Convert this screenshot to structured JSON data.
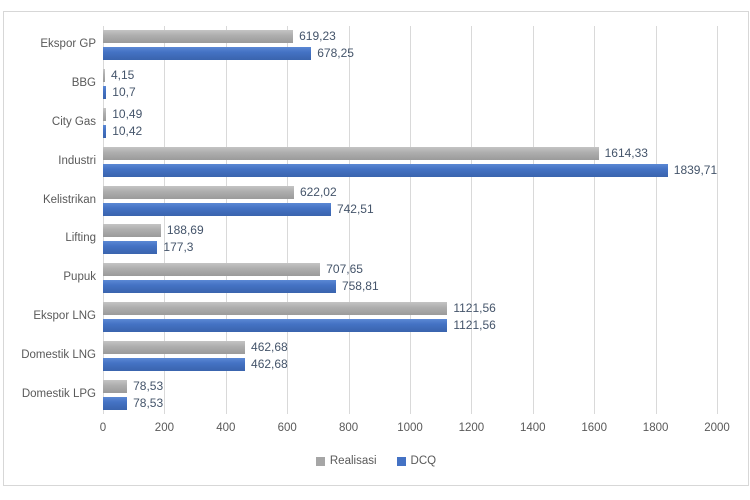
{
  "chart_data": {
    "type": "bar",
    "orientation": "horizontal",
    "title": "",
    "xlabel": "",
    "ylabel": "",
    "grid": "vertical",
    "legend_position": "bottom",
    "categories": [
      "Ekspor GP",
      "BBG",
      "City Gas",
      "Industri",
      "Kelistrikan",
      "Lifting",
      "Pupuk",
      "Ekspor LNG",
      "Domestik LNG",
      "Domestik LPG"
    ],
    "series": [
      {
        "name": "Realisasi",
        "color": "#a6a6a6",
        "values": [
          619.23,
          4.15,
          10.49,
          1614.33,
          622.02,
          188.69,
          707.65,
          1121.56,
          462.68,
          78.53
        ],
        "labels": [
          "619,23",
          "4,15",
          "10,49",
          "1614,33",
          "622,02",
          "188,69",
          "707,65",
          "1121,56",
          "462,68",
          "78,53"
        ]
      },
      {
        "name": "DCQ",
        "color": "#4472c4",
        "values": [
          678.25,
          10.7,
          10.42,
          1839.71,
          742.51,
          177.3,
          758.81,
          1121.56,
          462.68,
          78.53
        ],
        "labels": [
          "678,25",
          "10,7",
          "10,42",
          "1839,71",
          "742,51",
          "177,3",
          "758,81",
          "1121,56",
          "462,68",
          "78,53"
        ]
      }
    ],
    "x_axis": {
      "min": 0,
      "max": 2000,
      "tick_step": 200,
      "ticks": [
        "0",
        "200",
        "400",
        "600",
        "800",
        "1000",
        "1200",
        "1400",
        "1600",
        "1800",
        "2000"
      ]
    },
    "colors": {
      "gridline": "#d9d9d9",
      "axis_text": "#595959",
      "data_label_text": "#44546a",
      "frame_border": "#d7d7d7"
    }
  }
}
